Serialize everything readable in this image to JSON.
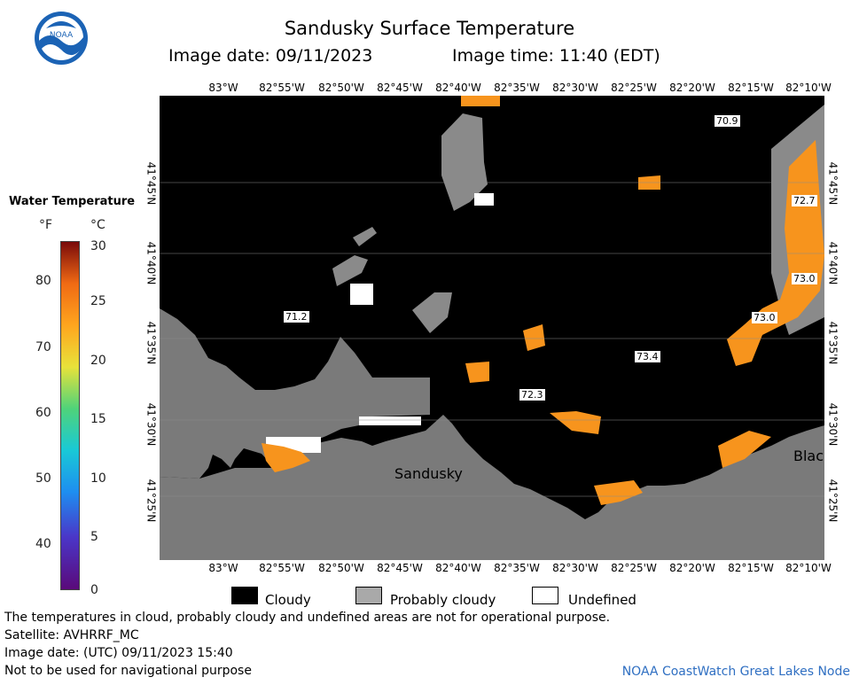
{
  "header": {
    "title": "Sandusky Surface Temperature",
    "image_date": "Image date: 09/11/2023",
    "image_time": "Image time: 11:40 (EDT)"
  },
  "logo": {
    "text": "NOAA",
    "icon": "noaa-logo-icon"
  },
  "map": {
    "lon_labels": [
      "83°W",
      "82°55'W",
      "82°50'W",
      "82°45'W",
      "82°40'W",
      "82°35'W",
      "82°30'W",
      "82°25'W",
      "82°20'W",
      "82°15'W",
      "82°10'W"
    ],
    "lat_labels": [
      "41°45'N",
      "41°40'N",
      "41°35'N",
      "41°30'N",
      "41°25'N"
    ],
    "place_labels": [
      "Sandusky",
      "Blac"
    ],
    "temperature_labels": [
      "70.9",
      "72.7",
      "73.0",
      "73.0",
      "71.2",
      "73.4",
      "72.3"
    ],
    "colors": {
      "land": "#7a7a7a",
      "cloudy": "#000000",
      "probably_cloudy": "#a9a9a9",
      "undefined": "#ffffff",
      "warm_water": "#f7941d"
    }
  },
  "legend": {
    "title": "Water Temperature",
    "unit_f": "°F",
    "unit_c": "°C",
    "f_ticks": [
      "80",
      "70",
      "60",
      "50",
      "40"
    ],
    "c_ticks": [
      "30",
      "25",
      "20",
      "15",
      "10",
      "5",
      "0"
    ]
  },
  "key": {
    "cloudy": "Cloudy",
    "probably_cloudy": "Probably cloudy",
    "undefined": "Undefined"
  },
  "footer": {
    "line1": "The temperatures in cloud, probably cloudy and undefined areas are not for operational purpose.",
    "line2": "Satellite: AVHRRF_MC",
    "line3": "Image date: (UTC) 09/11/2023  15:40",
    "line4": "Not to be used for navigational purpose",
    "credit": "NOAA CoastWatch Great Lakes Node"
  }
}
